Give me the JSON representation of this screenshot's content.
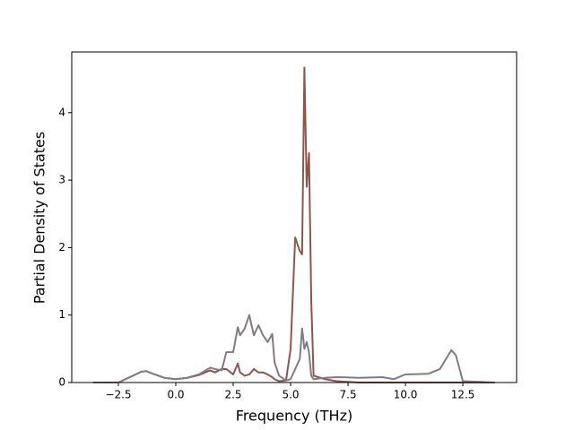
{
  "chart_data": {
    "type": "line",
    "xlabel": "Frequency (THz)",
    "ylabel": "Partial Density of States",
    "x": [
      -3.6,
      -2.5,
      -2.0,
      -1.5,
      -1.3,
      -1.0,
      -0.5,
      0.0,
      0.5,
      1.0,
      1.5,
      1.7,
      2.0,
      2.2,
      2.5,
      2.7,
      2.8,
      3.0,
      3.2,
      3.4,
      3.6,
      3.8,
      4.0,
      4.2,
      4.3,
      4.5,
      4.8,
      5.0,
      5.2,
      5.4,
      5.5,
      5.6,
      5.7,
      5.8,
      5.9,
      6.0,
      6.5,
      7.0,
      8.0,
      9.0,
      9.5,
      10.0,
      11.0,
      11.5,
      12.0,
      12.2,
      12.5,
      13.9
    ],
    "series": [
      {
        "color": "#8c564b",
        "values": [
          0,
          0,
          0.08,
          0.16,
          0.17,
          0.13,
          0.07,
          0.05,
          0.07,
          0.11,
          0.18,
          0.15,
          0.2,
          0.2,
          0.12,
          0.28,
          0.15,
          0.1,
          0.12,
          0.2,
          0.15,
          0.15,
          0.12,
          0.08,
          0.05,
          0.02,
          0.03,
          0.5,
          2.15,
          1.95,
          1.9,
          4.67,
          2.9,
          3.4,
          1.2,
          0.1,
          0.05,
          0.02,
          0,
          0,
          0,
          0,
          0,
          0,
          0,
          0,
          0,
          0
        ]
      },
      {
        "color": "#857a80",
        "values": [
          0,
          0,
          0.08,
          0.16,
          0.17,
          0.13,
          0.07,
          0.05,
          0.07,
          0.12,
          0.22,
          0.2,
          0.18,
          0.45,
          0.45,
          0.82,
          0.7,
          0.8,
          1.0,
          0.7,
          0.85,
          0.7,
          0.6,
          0.72,
          0.3,
          0.1,
          0.03,
          0.05,
          0.2,
          0.35,
          0.8,
          0.5,
          0.6,
          0.45,
          0.1,
          0.05,
          0.07,
          0.08,
          0.07,
          0.08,
          0.05,
          0.12,
          0.13,
          0.2,
          0.48,
          0.4,
          0.02,
          0
        ]
      }
    ],
    "xlim": [
      -4.53,
      14.84
    ],
    "ylim": [
      0,
      4.9
    ],
    "xticks": [
      {
        "value": -2.5,
        "label": "−2.5"
      },
      {
        "value": 0,
        "label": "0.0"
      },
      {
        "value": 2.5,
        "label": "2.5"
      },
      {
        "value": 5,
        "label": "5.0"
      },
      {
        "value": 7.5,
        "label": "7.5"
      },
      {
        "value": 10,
        "label": "10.0"
      },
      {
        "value": 12.5,
        "label": "12.5"
      }
    ],
    "yticks": [
      0,
      1,
      2,
      3,
      4
    ],
    "grid": false
  }
}
